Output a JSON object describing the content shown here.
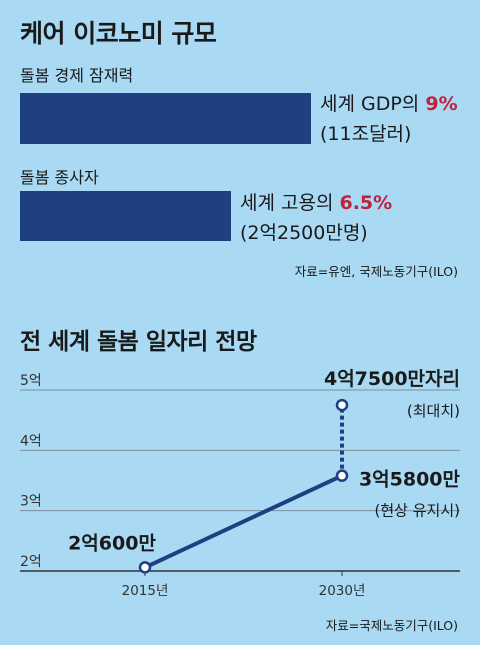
{
  "section1": {
    "title": "케어 이코노미 규모",
    "items": [
      {
        "label": "돌봄 경제 잠재력",
        "desc_prefix": "세계 GDP의 ",
        "pct_text": "9%",
        "pct_value": 9,
        "sub": "(11조달러)"
      },
      {
        "label": "돌봄 종사자",
        "desc_prefix": "세계 고용의 ",
        "pct_text": "6.5%",
        "pct_value": 6.5,
        "sub": "(2억2500만명)"
      }
    ],
    "source": "자료=유엔, 국제노동기구(ILO)"
  },
  "section2": {
    "title": "전 세계 돌봄 일자리 전망",
    "source": "자료=국제노동기구(ILO)"
  },
  "colors": {
    "bar": "#1e3f80",
    "accent": "#c0213b",
    "background": "#a9d9f3",
    "line": "#1e3f80"
  },
  "chart_data": {
    "type": "line",
    "x": [
      "2015년",
      "2030년"
    ],
    "ylim": [
      2,
      5
    ],
    "yticks": [
      2,
      3,
      4,
      5
    ],
    "ytick_labels": [
      "2억",
      "3억",
      "4억",
      "5억"
    ],
    "series": [
      {
        "style": "solid",
        "values": [
          2.06,
          3.58
        ]
      },
      {
        "style": "dotted",
        "from": {
          "x": "2030년",
          "y": 3.58
        },
        "to": {
          "x": "2030년",
          "y": 4.75
        }
      }
    ],
    "annotations": [
      {
        "text": "2억600만",
        "sub": ""
      },
      {
        "text": "3억5800만",
        "sub": "(현상 유지시)"
      },
      {
        "text": "4억7500만자리",
        "sub": "(최대치)"
      }
    ]
  }
}
